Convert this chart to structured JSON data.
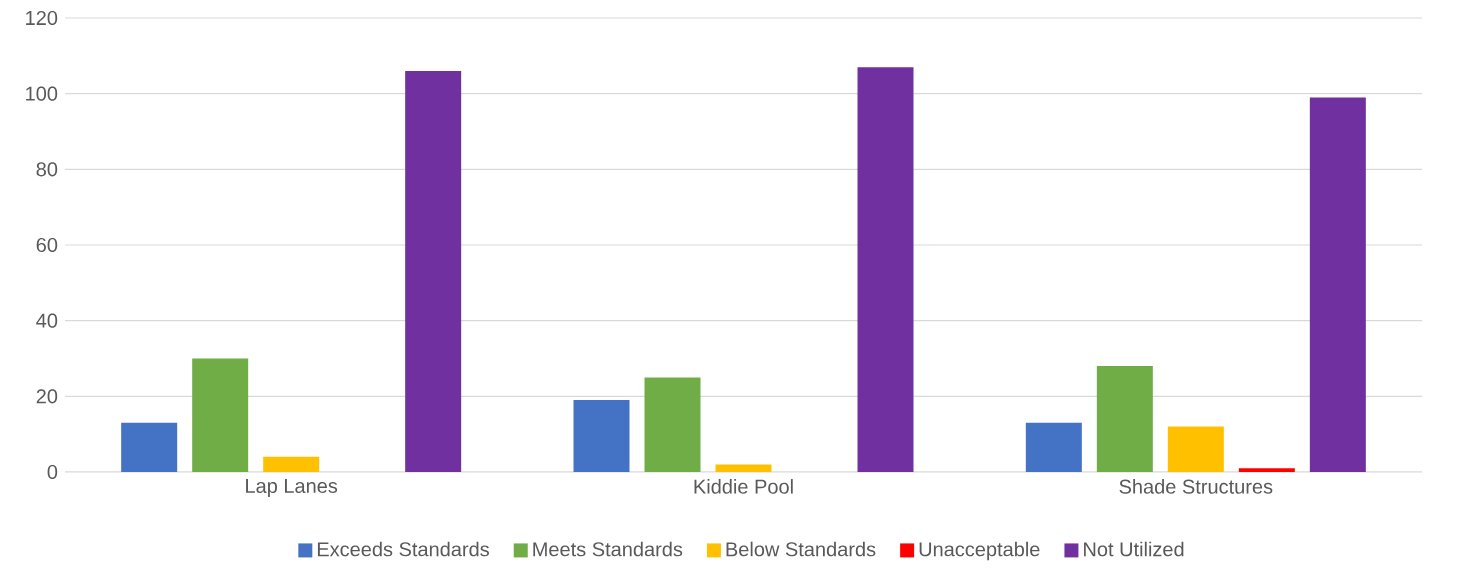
{
  "chart_data": {
    "type": "bar",
    "categories": [
      "Lap Lanes",
      "Kiddie Pool",
      "Shade Structures"
    ],
    "series": [
      {
        "name": "Exceeds Standards",
        "color": "#4472c4",
        "values": [
          13,
          19,
          13
        ]
      },
      {
        "name": "Meets Standards",
        "color": "#70ad47",
        "values": [
          30,
          25,
          28
        ]
      },
      {
        "name": "Below Standards",
        "color": "#ffc000",
        "values": [
          4,
          2,
          12
        ]
      },
      {
        "name": "Unacceptable",
        "color": "#ff0000",
        "values": [
          0,
          0,
          1
        ]
      },
      {
        "name": "Not Utilized",
        "color": "#7030a0",
        "values": [
          106,
          107,
          99
        ]
      }
    ],
    "ylim": [
      0,
      120
    ],
    "yticks": [
      0,
      20,
      40,
      60,
      80,
      100,
      120
    ],
    "grid": "y",
    "legend": "bottom"
  }
}
